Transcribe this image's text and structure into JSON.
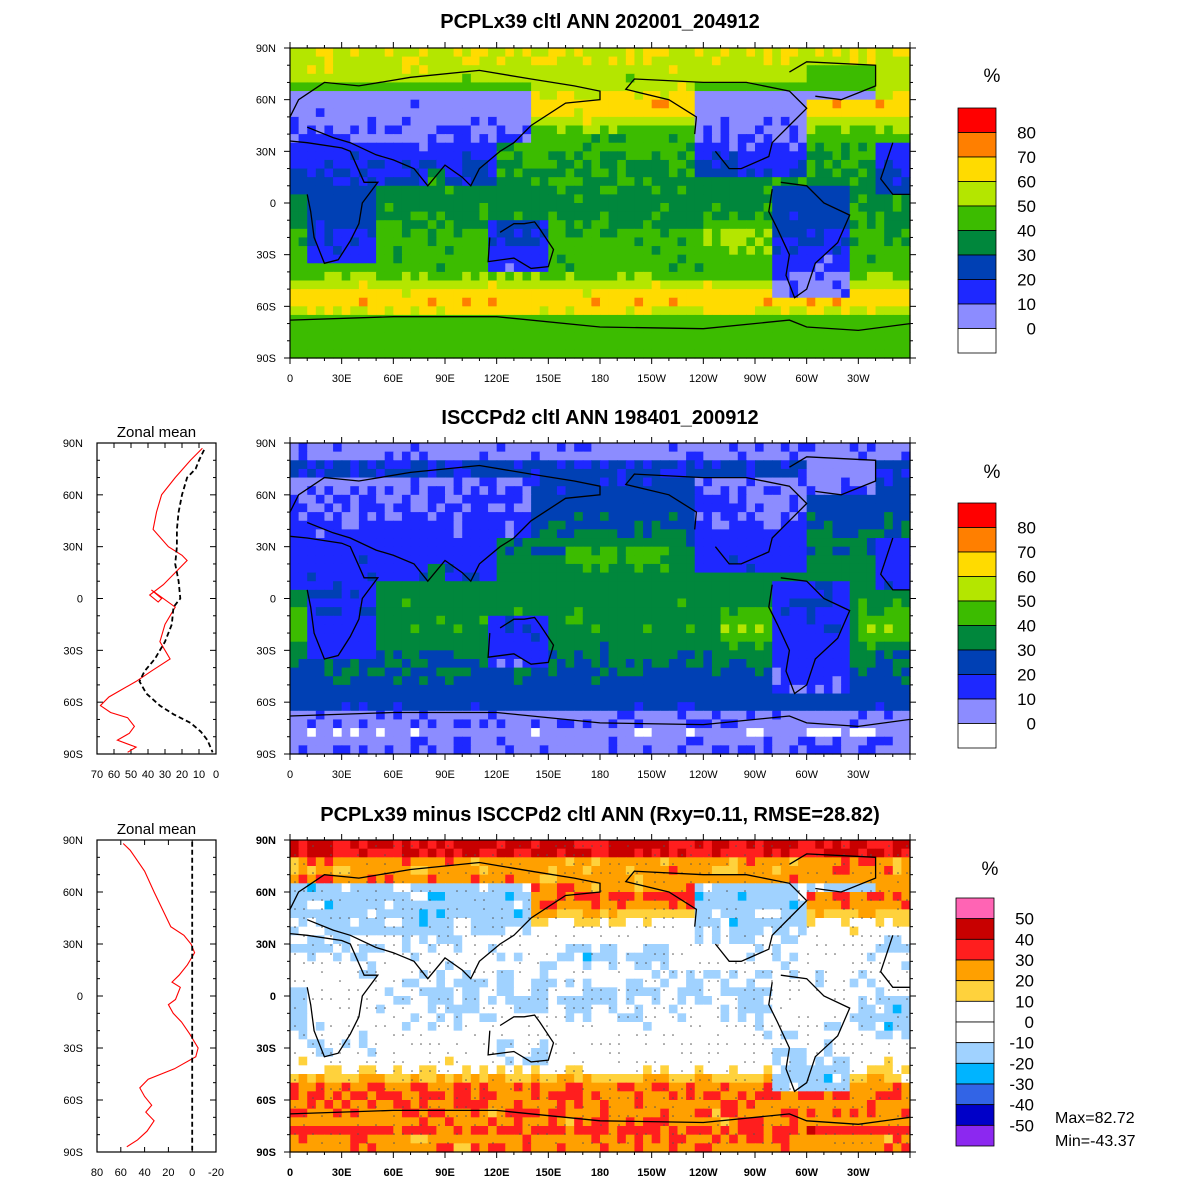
{
  "chart_data": [
    {
      "type": "heatmap",
      "title": "PCPLx39 cltl ANN 202001_204912",
      "x_ticks": [
        "0",
        "30E",
        "60E",
        "90E",
        "120E",
        "150E",
        "180",
        "150W",
        "120W",
        "90W",
        "60W",
        "30W"
      ],
      "y_ticks": [
        "90N",
        "60N",
        "30N",
        "0",
        "30S",
        "60S",
        "90S"
      ],
      "units": "%",
      "colorbar": {
        "levels": [
          "80",
          "70",
          "60",
          "50",
          "40",
          "30",
          "20",
          "10",
          "0"
        ],
        "colors": [
          "#ff0000",
          "#ff7f00",
          "#ffdb00",
          "#b4e600",
          "#3cbc00",
          "#00873c",
          "#0040b4",
          "#1e28ff",
          "#8c8cff",
          "#ffffff"
        ]
      }
    },
    {
      "type": "heatmap",
      "title": "ISCCPd2 cltl ANN 198401_200912",
      "x_ticks": [
        "0",
        "30E",
        "60E",
        "90E",
        "120E",
        "150E",
        "180",
        "150W",
        "120W",
        "90W",
        "60W",
        "30W"
      ],
      "y_ticks": [
        "90N",
        "60N",
        "30N",
        "0",
        "30S",
        "60S",
        "90S"
      ],
      "units": "%",
      "colorbar": {
        "levels": [
          "80",
          "70",
          "60",
          "50",
          "40",
          "30",
          "20",
          "10",
          "0"
        ],
        "colors": [
          "#ff0000",
          "#ff7f00",
          "#ffdb00",
          "#b4e600",
          "#3cbc00",
          "#00873c",
          "#0040b4",
          "#1e28ff",
          "#8c8cff",
          "#ffffff"
        ]
      },
      "zonal_mean": {
        "title": "Zonal mean",
        "x_ticks": [
          "70",
          "60",
          "50",
          "40",
          "30",
          "20",
          "10",
          "0"
        ],
        "y_ticks": [
          "90N",
          "60N",
          "30N",
          "0",
          "30S",
          "60S",
          "90S"
        ],
        "xlim": [
          70,
          0
        ],
        "ylim": [
          -90,
          90
        ],
        "series": [
          {
            "color": "#ff0000",
            "dash": false,
            "points": [
              [
                8,
                87
              ],
              [
                15,
                80
              ],
              [
                24,
                70
              ],
              [
                32,
                60
              ],
              [
                35,
                50
              ],
              [
                37,
                40
              ],
              [
                28,
                30
              ],
              [
                20,
                25
              ],
              [
                17,
                22
              ],
              [
                24,
                15
              ],
              [
                31,
                8
              ],
              [
                39,
                2
              ],
              [
                34,
                -2
              ],
              [
                32,
                0
              ],
              [
                38,
                5
              ],
              [
                24,
                -5
              ],
              [
                30,
                -15
              ],
              [
                33,
                -25
              ],
              [
                27,
                -35
              ],
              [
                38,
                -42
              ],
              [
                47,
                -48
              ],
              [
                56,
                -53
              ],
              [
                63,
                -57
              ],
              [
                68,
                -62
              ],
              [
                62,
                -66
              ],
              [
                52,
                -69
              ],
              [
                48,
                -74
              ],
              [
                51,
                -78
              ],
              [
                58,
                -82
              ],
              [
                47,
                -86
              ],
              [
                52,
                -89
              ]
            ]
          },
          {
            "color": "#000000",
            "dash": true,
            "points": [
              [
                7,
                86
              ],
              [
                10,
                80
              ],
              [
                12,
                75
              ],
              [
                17,
                70
              ],
              [
                20,
                60
              ],
              [
                22,
                50
              ],
              [
                23,
                40
              ],
              [
                23,
                30
              ],
              [
                24,
                20
              ],
              [
                22,
                10
              ],
              [
                21,
                0
              ],
              [
                25,
                -5
              ],
              [
                26,
                -15
              ],
              [
                30,
                -25
              ],
              [
                36,
                -35
              ],
              [
                42,
                -42
              ],
              [
                45,
                -48
              ],
              [
                41,
                -55
              ],
              [
                33,
                -62
              ],
              [
                25,
                -67
              ],
              [
                15,
                -72
              ],
              [
                9,
                -77
              ],
              [
                5,
                -82
              ],
              [
                2,
                -89
              ]
            ]
          }
        ]
      }
    },
    {
      "type": "heatmap",
      "title": "PCPLx39 minus ISCCPd2 cltl ANN (Rxy=0.11, RMSE=28.82)",
      "x_ticks": [
        "0",
        "30E",
        "60E",
        "90E",
        "120E",
        "150E",
        "180",
        "150W",
        "120W",
        "90W",
        "60W",
        "30W"
      ],
      "y_ticks": [
        "90N",
        "60N",
        "30N",
        "0",
        "30S",
        "60S",
        "90S"
      ],
      "units": "%",
      "max_label": "Max=82.72",
      "min_label": "Min=-43.37",
      "colorbar": {
        "levels": [
          "50",
          "40",
          "30",
          "20",
          "10",
          "0",
          "-10",
          "-20",
          "-30",
          "-40",
          "-50"
        ],
        "colors": [
          "#ff64b4",
          "#c80000",
          "#ff1e1e",
          "#ffa000",
          "#ffd23c",
          "#ffffff",
          "#ffffff",
          "#a0d2ff",
          "#00b4ff",
          "#3264e6",
          "#0000c8",
          "#8c28f0"
        ]
      },
      "zonal_mean": {
        "title": "Zonal mean",
        "x_ticks": [
          "80",
          "60",
          "40",
          "20",
          "0",
          "-20"
        ],
        "y_ticks": [
          "90N",
          "60N",
          "30N",
          "0",
          "30S",
          "60S",
          "90S"
        ],
        "xlim": [
          80,
          -20
        ],
        "ylim": [
          -90,
          90
        ],
        "series": [
          {
            "color": "#ff0000",
            "dash": false,
            "points": [
              [
                58,
                88
              ],
              [
                52,
                84
              ],
              [
                48,
                80
              ],
              [
                40,
                72
              ],
              [
                32,
                60
              ],
              [
                25,
                50
              ],
              [
                18,
                40
              ],
              [
                7,
                35
              ],
              [
                1,
                30
              ],
              [
                -2,
                25
              ],
              [
                4,
                18
              ],
              [
                11,
                12
              ],
              [
                17,
                8
              ],
              [
                10,
                5
              ],
              [
                14,
                -2
              ],
              [
                20,
                -5
              ],
              [
                16,
                -10
              ],
              [
                9,
                -15
              ],
              [
                2,
                -22
              ],
              [
                -5,
                -30
              ],
              [
                -3,
                -35
              ],
              [
                15,
                -42
              ],
              [
                37,
                -48
              ],
              [
                44,
                -53
              ],
              [
                40,
                -58
              ],
              [
                34,
                -63
              ],
              [
                39,
                -67
              ],
              [
                32,
                -72
              ],
              [
                38,
                -78
              ],
              [
                46,
                -83
              ],
              [
                55,
                -87
              ]
            ]
          },
          {
            "color": "#000000",
            "dash": true,
            "points": [
              [
                0,
                89
              ],
              [
                0,
                -89
              ]
            ]
          }
        ]
      }
    }
  ]
}
